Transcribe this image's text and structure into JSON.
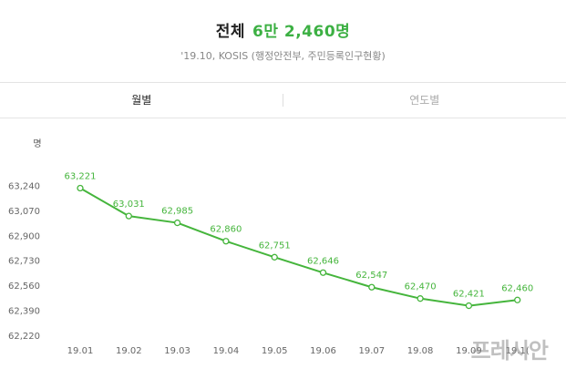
{
  "summary": {
    "label": "전체",
    "value": "6만 2,460명",
    "source": "'19.10, KOSIS (행정안전부, 주민등록인구현황)"
  },
  "tabs": [
    {
      "label": "월별",
      "active": true
    },
    {
      "label": "연도별",
      "active": false
    }
  ],
  "colors": {
    "accent": "#3cb043",
    "line": "#45b53c"
  },
  "watermark": "프레시안",
  "chart_data": {
    "type": "line",
    "y_unit_label": "명",
    "categories": [
      "19.01",
      "19.02",
      "19.03",
      "19.04",
      "19.05",
      "19.06",
      "19.07",
      "19.08",
      "19.09",
      "19.1("
    ],
    "values": [
      63221,
      63031,
      62985,
      62860,
      62751,
      62646,
      62547,
      62470,
      62421,
      62460
    ],
    "value_labels": [
      "63,221",
      "63,031",
      "62,985",
      "62,860",
      "62,751",
      "62,646",
      "62,547",
      "62,470",
      "62,421",
      "62,460"
    ],
    "y_ticks": [
      "63,240",
      "63,070",
      "62,900",
      "62,730",
      "62,560",
      "62,390",
      "62,220"
    ],
    "ylim": [
      62220,
      63410
    ],
    "grid": false
  }
}
